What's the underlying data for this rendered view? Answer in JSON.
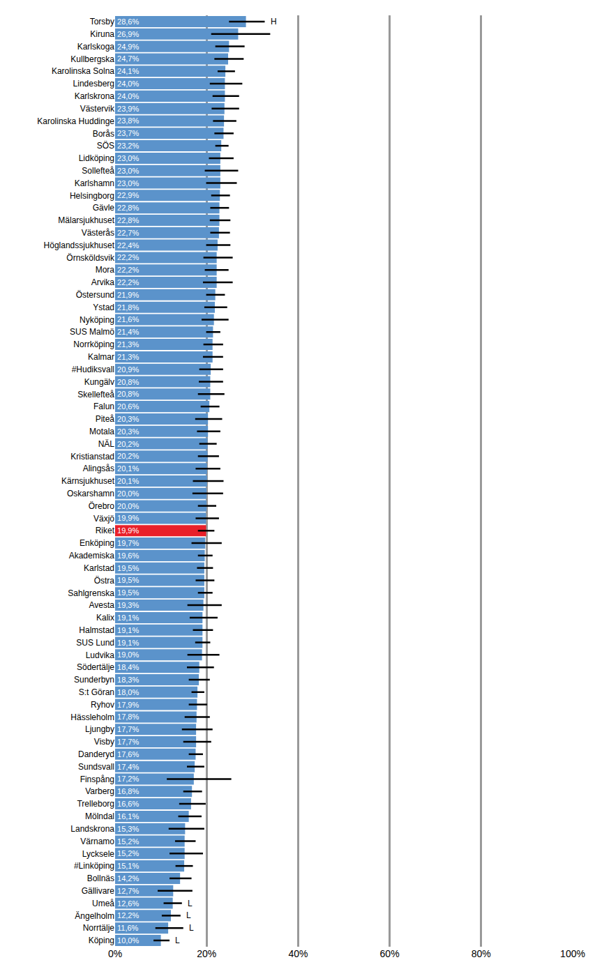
{
  "chart_data": {
    "type": "bar",
    "orientation": "horizontal",
    "data_labels": true,
    "grid": true,
    "categories": [
      "Torsby",
      "Kiruna",
      "Karlskoga",
      "Kullbergska",
      "Karolinska Solna",
      "Lindesberg",
      "Karlskrona",
      "Västervik",
      "Karolinska Huddinge",
      "Borås",
      "SÖS",
      "Lidköping",
      "Sollefteå",
      "Karlshamn",
      "Helsingborg",
      "Gävle",
      "Mälarsjukhuset",
      "Västerås",
      "Höglandssjukhuset",
      "Örnsköldsvik",
      "Mora",
      "Arvika",
      "Östersund",
      "Ystad",
      "Nyköping",
      "SUS Malmö",
      "Norrköping",
      "Kalmar",
      "#Hudiksvall",
      "Kungälv",
      "Skellefteå",
      "Falun",
      "Piteå",
      "Motala",
      "NÄL",
      "Kristianstad",
      "Alingsås",
      "Kärnsjukhuset",
      "Oskarshamn",
      "Örebro",
      "Växjö",
      "Riket",
      "Enköping",
      "Akademiska",
      "Karlstad",
      "Östra",
      "Sahlgrenska",
      "Avesta",
      "Kalix",
      "Halmstad",
      "SUS Lund",
      "Ludvika",
      "Södertälje",
      "Sunderbyn",
      "S:t Göran",
      "Ryhov",
      "Hässleholm",
      "Ljungby",
      "Visby",
      "Danderyd",
      "Sundsvall",
      "Finspång",
      "Varberg",
      "Trelleborg",
      "Mölndal",
      "Landskrona",
      "Värnamo",
      "Lycksele",
      "#Linköping",
      "Bollnäs",
      "Gällivare",
      "Umeå",
      "Ängelholm",
      "Norrtälje",
      "Köping"
    ],
    "values": [
      28.6,
      26.9,
      24.9,
      24.7,
      24.1,
      24.0,
      24.0,
      23.9,
      23.8,
      23.7,
      23.2,
      23.0,
      23.0,
      23.0,
      22.9,
      22.8,
      22.8,
      22.7,
      22.4,
      22.2,
      22.2,
      22.2,
      21.9,
      21.8,
      21.6,
      21.4,
      21.3,
      21.3,
      20.9,
      20.8,
      20.8,
      20.6,
      20.3,
      20.3,
      20.2,
      20.2,
      20.1,
      20.1,
      20.0,
      20.0,
      19.9,
      19.9,
      19.7,
      19.6,
      19.5,
      19.5,
      19.5,
      19.3,
      19.1,
      19.1,
      19.1,
      19.0,
      18.4,
      18.3,
      18.0,
      17.9,
      17.8,
      17.7,
      17.7,
      17.6,
      17.4,
      17.2,
      16.8,
      16.6,
      16.1,
      15.3,
      15.2,
      15.2,
      15.1,
      14.2,
      12.7,
      12.6,
      12.2,
      11.6,
      10.0
    ],
    "value_labels": [
      "28,6%",
      "26,9%",
      "24,9%",
      "24,7%",
      "24,1%",
      "24,0%",
      "24,0%",
      "23,9%",
      "23,8%",
      "23,7%",
      "23,2%",
      "23,0%",
      "23,0%",
      "23,0%",
      "22,9%",
      "22,8%",
      "22,8%",
      "22,7%",
      "22,4%",
      "22,2%",
      "22,2%",
      "22,2%",
      "21,9%",
      "21,8%",
      "21,6%",
      "21,4%",
      "21,3%",
      "21,3%",
      "20,9%",
      "20,8%",
      "20,8%",
      "20,6%",
      "20,3%",
      "20,3%",
      "20,2%",
      "20,2%",
      "20,1%",
      "20,1%",
      "20,0%",
      "20,0%",
      "19,9%",
      "19,9%",
      "19,7%",
      "19,6%",
      "19,5%",
      "19,5%",
      "19,5%",
      "19,3%",
      "19,1%",
      "19,1%",
      "19,1%",
      "19,0%",
      "18,4%",
      "18,3%",
      "18,0%",
      "17,9%",
      "17,8%",
      "17,7%",
      "17,7%",
      "17,6%",
      "17,4%",
      "17,2%",
      "16,8%",
      "16,6%",
      "16,1%",
      "15,3%",
      "15,2%",
      "15,2%",
      "15,1%",
      "14,2%",
      "12,7%",
      "12,6%",
      "12,2%",
      "11,6%",
      "10,0%"
    ],
    "ci_low": [
      24.9,
      21.0,
      21.9,
      21.7,
      22.4,
      20.7,
      21.3,
      21.1,
      21.4,
      21.7,
      21.9,
      20.5,
      19.6,
      19.9,
      21.0,
      20.8,
      20.7,
      20.8,
      19.9,
      19.3,
      19.6,
      19.2,
      19.9,
      19.5,
      18.9,
      19.9,
      19.3,
      19.2,
      18.4,
      18.3,
      18.1,
      18.7,
      17.5,
      17.9,
      18.4,
      18.1,
      17.6,
      17.0,
      16.9,
      18.1,
      17.6,
      18.1,
      16.7,
      18.1,
      17.9,
      17.6,
      18.1,
      15.8,
      16.3,
      17.0,
      17.5,
      15.8,
      15.7,
      16.1,
      16.7,
      16.1,
      15.2,
      14.6,
      14.9,
      16.1,
      15.7,
      11.3,
      14.9,
      14.0,
      13.8,
      11.7,
      13.1,
      11.9,
      13.2,
      11.9,
      9.3,
      10.6,
      10.2,
      8.8,
      8.4
    ],
    "ci_high": [
      32.7,
      33.9,
      28.3,
      28.1,
      26.2,
      27.8,
      27.1,
      27.1,
      26.5,
      25.9,
      24.8,
      25.9,
      26.9,
      26.6,
      25.1,
      24.9,
      25.2,
      25.1,
      25.2,
      25.7,
      24.8,
      25.7,
      24.0,
      24.5,
      24.8,
      23.0,
      23.6,
      23.6,
      23.6,
      23.6,
      23.9,
      22.8,
      23.4,
      23.0,
      22.2,
      22.7,
      23.0,
      23.7,
      23.6,
      22.1,
      22.7,
      21.7,
      23.3,
      21.3,
      21.4,
      21.7,
      21.3,
      23.3,
      22.4,
      21.4,
      20.8,
      22.8,
      21.6,
      20.7,
      19.5,
      20.1,
      20.7,
      21.3,
      21.0,
      19.2,
      19.5,
      25.4,
      19.0,
      19.8,
      18.9,
      19.5,
      17.6,
      19.2,
      17.0,
      16.7,
      16.9,
      14.6,
      14.3,
      14.9,
      11.9
    ],
    "colors": [
      "#5b93cb",
      "#5b93cb",
      "#5b93cb",
      "#5b93cb",
      "#5b93cb",
      "#5b93cb",
      "#5b93cb",
      "#5b93cb",
      "#5b93cb",
      "#5b93cb",
      "#5b93cb",
      "#5b93cb",
      "#5b93cb",
      "#5b93cb",
      "#5b93cb",
      "#5b93cb",
      "#5b93cb",
      "#5b93cb",
      "#5b93cb",
      "#5b93cb",
      "#5b93cb",
      "#5b93cb",
      "#5b93cb",
      "#5b93cb",
      "#5b93cb",
      "#5b93cb",
      "#5b93cb",
      "#5b93cb",
      "#5b93cb",
      "#5b93cb",
      "#5b93cb",
      "#5b93cb",
      "#5b93cb",
      "#5b93cb",
      "#5b93cb",
      "#5b93cb",
      "#5b93cb",
      "#5b93cb",
      "#5b93cb",
      "#5b93cb",
      "#5b93cb",
      "#e8202a",
      "#5b93cb",
      "#5b93cb",
      "#5b93cb",
      "#5b93cb",
      "#5b93cb",
      "#5b93cb",
      "#5b93cb",
      "#5b93cb",
      "#5b93cb",
      "#5b93cb",
      "#5b93cb",
      "#5b93cb",
      "#5b93cb",
      "#5b93cb",
      "#5b93cb",
      "#5b93cb",
      "#5b93cb",
      "#5b93cb",
      "#5b93cb",
      "#5b93cb",
      "#5b93cb",
      "#5b93cb",
      "#5b93cb",
      "#5b93cb",
      "#5b93cb",
      "#5b93cb",
      "#5b93cb",
      "#5b93cb",
      "#5b93cb",
      "#5b93cb",
      "#5b93cb",
      "#5b93cb",
      "#5b93cb"
    ],
    "annotations": [
      {
        "category": "Torsby",
        "text": "H"
      },
      {
        "category": "Umeå",
        "text": "L"
      },
      {
        "category": "Ängelholm",
        "text": "L"
      },
      {
        "category": "Norrtälje",
        "text": "L"
      },
      {
        "category": "Köping",
        "text": "L"
      }
    ],
    "xlim": [
      0,
      100
    ],
    "xticks": [
      {
        "value": 0,
        "label": "0%"
      },
      {
        "value": 20,
        "label": "20%"
      },
      {
        "value": 40,
        "label": "40%"
      },
      {
        "value": 60,
        "label": "60%"
      },
      {
        "value": 80,
        "label": "80%"
      },
      {
        "value": 100,
        "label": "100%"
      }
    ]
  }
}
